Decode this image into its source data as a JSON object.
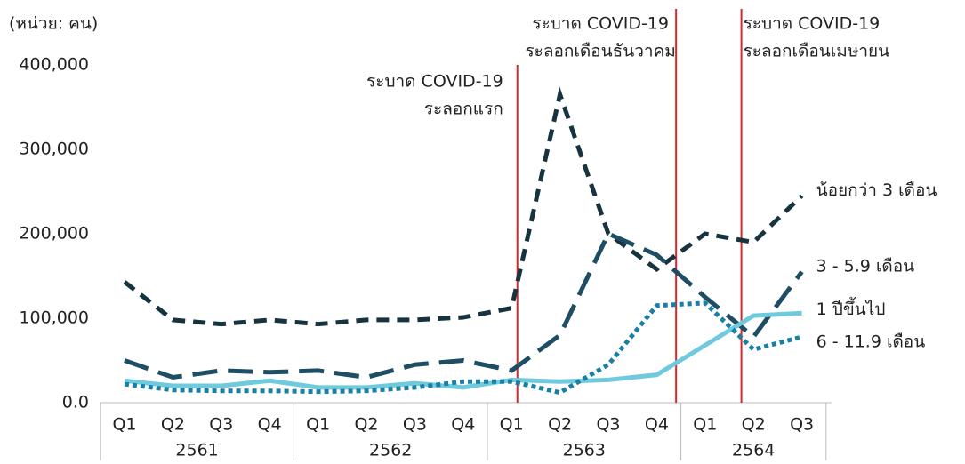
{
  "chart_data": {
    "type": "line",
    "unit_label": "(หน่วย: คน)",
    "categories": [
      "Q1",
      "Q2",
      "Q3",
      "Q4",
      "Q1",
      "Q2",
      "Q3",
      "Q4",
      "Q1",
      "Q2",
      "Q3",
      "Q4",
      "Q1",
      "Q2",
      "Q3"
    ],
    "year_groups": [
      "2561",
      "2562",
      "2563",
      "2564"
    ],
    "ylim": [
      0,
      400000
    ],
    "yticks": [
      {
        "value": 0,
        "label": "0.0"
      },
      {
        "value": 100000,
        "label": "100,000"
      },
      {
        "value": 200000,
        "label": "200,000"
      },
      {
        "value": 300000,
        "label": "300,000"
      },
      {
        "value": 400000,
        "label": "400,000"
      }
    ],
    "series": [
      {
        "name": "น้อยกว่า 3 เดือน",
        "color": "#16333f",
        "dash": "14 9",
        "values": [
          143000,
          98000,
          93000,
          98000,
          93000,
          98000,
          98000,
          101000,
          112000,
          365000,
          200000,
          158000,
          200000,
          190000,
          245000
        ]
      },
      {
        "name": "3 - 5.9 เดือน",
        "color": "#1d4e63",
        "dash": "28 12",
        "values": [
          50000,
          30000,
          38000,
          36000,
          38000,
          30000,
          45000,
          50000,
          38000,
          80000,
          200000,
          175000,
          125000,
          78000,
          155000
        ]
      },
      {
        "name": "1 ปีขึ้นไป",
        "color": "#6ecadc",
        "dash": "",
        "values": [
          26000,
          20000,
          20000,
          26000,
          18000,
          18000,
          23000,
          18000,
          27000,
          25000,
          27000,
          33000,
          68000,
          103000,
          106000
        ]
      },
      {
        "name": "6 - 11.9 เดือน",
        "color": "#1b7fa3",
        "dash": "5 4",
        "values": [
          22000,
          15000,
          14000,
          14000,
          13000,
          14000,
          18000,
          25000,
          25000,
          12000,
          45000,
          115000,
          118000,
          63000,
          78000
        ]
      }
    ],
    "annotations": [
      {
        "lines": [
          "ระบาด COVID-19",
          "ระลอกแรก"
        ],
        "color": "#d9262b"
      },
      {
        "lines": [
          "ระบาด COVID-19",
          "ระลอกเดือนธันวาคม"
        ],
        "color": "#d9262b"
      },
      {
        "lines": [
          "ระบาด COVID-19",
          "ระลอกเดือนเมษายน"
        ],
        "color": "#d9262b"
      }
    ]
  }
}
